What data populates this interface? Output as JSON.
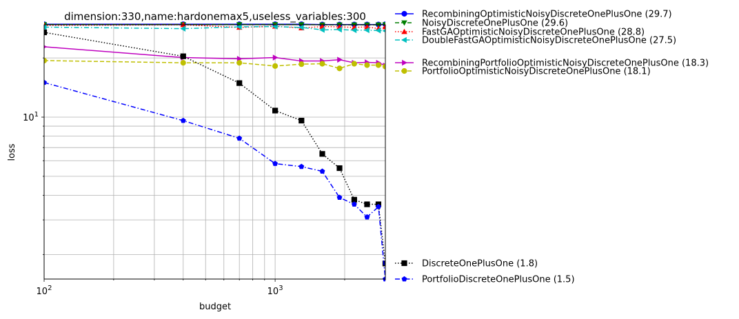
{
  "chart_data": {
    "type": "line",
    "title": "dimension:330,name:hardonemax5,useless_variables:300",
    "xlabel": "budget",
    "ylabel": "loss",
    "xscale": "log",
    "yscale": "log",
    "xlim": [
      100,
      3000
    ],
    "ylim": [
      1.5,
      29.5
    ],
    "grid": true,
    "legend_placement": "outside-right",
    "x_ticks": [
      {
        "value": 100,
        "base": "10",
        "exp": "2"
      },
      {
        "value": 1000,
        "base": "10",
        "exp": "3"
      }
    ],
    "y_ticks": [
      {
        "value": 10,
        "base": "10",
        "exp": "1"
      }
    ],
    "series": [
      {
        "name": "RecombiningOptimisticNoisyDiscreteOnePlusOne (29.7)",
        "color": "#0000ff",
        "dash": "solid",
        "marker": "circle",
        "x": [
          100,
          400,
          700,
          1000,
          1300,
          1600,
          1900,
          2200,
          2500,
          2800,
          3000
        ],
        "y": [
          29.7,
          29.7,
          29.7,
          29.7,
          29.7,
          29.6,
          29.6,
          29.6,
          29.6,
          29.6,
          29.7
        ]
      },
      {
        "name": "NoisyDiscreteOnePlusOne (29.6)",
        "color": "#007f00",
        "dash": "dashed",
        "marker": "triangle-down",
        "x": [
          100,
          400,
          700,
          1000,
          1300,
          1600,
          1900,
          2200,
          2500,
          2800,
          3000
        ],
        "y": [
          29.6,
          29.6,
          29.6,
          29.6,
          29.6,
          29.5,
          29.5,
          29.5,
          29.5,
          29.5,
          29.6
        ]
      },
      {
        "name": "FastGAOptimisticNoisyDiscreteOnePlusOne (28.8)",
        "color": "#ff0000",
        "dash": "dotted",
        "marker": "triangle-up",
        "x": [
          100,
          400,
          700,
          1000,
          1300,
          1600,
          1900,
          2200,
          2500,
          2800,
          3000
        ],
        "y": [
          29.3,
          29.5,
          28.6,
          29.0,
          28.4,
          28.9,
          28.8,
          28.6,
          28.8,
          28.2,
          28.8
        ]
      },
      {
        "name": "DoubleFastGAOptimisticNoisyDiscreteOnePlusOne (27.5)",
        "color": "#00bfbf",
        "dash": "dashdot",
        "marker": "triangle-left",
        "x": [
          100,
          400,
          700,
          1000,
          1300,
          1600,
          1900,
          2200,
          2500,
          2800,
          3000
        ],
        "y": [
          28.7,
          28.2,
          28.8,
          28.9,
          28.6,
          27.8,
          27.9,
          27.7,
          27.7,
          27.6,
          27.5
        ]
      },
      {
        "name": "RecombiningPortfolioOptimisticNoisyDiscreteOnePlusOne (18.3)",
        "color": "#bf00bf",
        "dash": "solid",
        "marker": "triangle-right",
        "x": [
          100,
          400,
          700,
          1000,
          1300,
          1600,
          1900,
          2200,
          2500,
          2800,
          3000
        ],
        "y": [
          22.8,
          20.1,
          19.8,
          20.1,
          19.3,
          19.3,
          19.6,
          18.9,
          19.0,
          18.9,
          18.3
        ]
      },
      {
        "name": "PortfolioOptimisticNoisyDiscreteOnePlusOne (18.1)",
        "color": "#bfbf00",
        "dash": "dashed",
        "marker": "circle",
        "x": [
          100,
          400,
          700,
          1000,
          1300,
          1600,
          1900,
          2200,
          2500,
          2800,
          3000
        ],
        "y": [
          19.4,
          18.9,
          18.9,
          18.2,
          18.6,
          18.7,
          17.7,
          18.7,
          18.4,
          18.4,
          18.1
        ]
      },
      {
        "name": "DiscreteOnePlusOne (1.8)",
        "color": "#000000",
        "dash": "dotted",
        "marker": "square",
        "x": [
          100,
          400,
          700,
          1000,
          1300,
          1600,
          1900,
          2200,
          2500,
          2800,
          3000
        ],
        "y": [
          27.0,
          20.4,
          14.9,
          10.8,
          9.6,
          6.5,
          5.5,
          3.8,
          3.6,
          3.6,
          1.8
        ]
      },
      {
        "name": "PortfolioDiscreteOnePlusOne (1.5)",
        "color": "#0000ff",
        "dash": "dashdot",
        "marker": "pentagon",
        "x": [
          100,
          400,
          700,
          1000,
          1300,
          1600,
          1900,
          2200,
          2500,
          2800,
          3000
        ],
        "y": [
          15.0,
          9.6,
          7.8,
          5.8,
          5.6,
          5.3,
          3.9,
          3.6,
          3.1,
          3.5,
          1.5
        ]
      }
    ]
  }
}
